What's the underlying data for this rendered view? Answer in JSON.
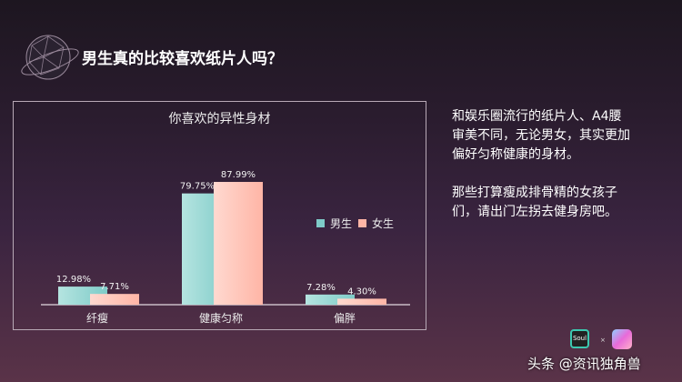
{
  "header": {
    "title": "男生真的比较喜欢纸片人吗？"
  },
  "side_text": [
    "和娱乐圈流行的纸片人、A4腰审美不同，无论男女，其实更加偏好匀称健康的身材。",
    "那些打算瘦成排骨精的女孩子们，请出门左拐去健身房吧。"
  ],
  "watermark": "头条 @资讯独角兽",
  "logos": {
    "soul": "Soul",
    "x": "×"
  },
  "chart_data": {
    "type": "bar",
    "title": "你喜欢的异性身材",
    "categories": [
      "纤瘦",
      "健康匀称",
      "偏胖"
    ],
    "series": [
      {
        "name": "男生",
        "values": [
          12.98,
          79.75,
          7.28
        ],
        "labels": [
          "12.98%",
          "79.75%",
          "7.28%"
        ],
        "color": "#7ecbc8"
      },
      {
        "name": "女生",
        "values": [
          7.71,
          87.99,
          4.3
        ],
        "labels": [
          "7.71%",
          "87.99%",
          "4.30%"
        ],
        "color": "#ffb5a6"
      }
    ],
    "legend": "right",
    "grid": false,
    "ylim": [
      0,
      100
    ]
  }
}
